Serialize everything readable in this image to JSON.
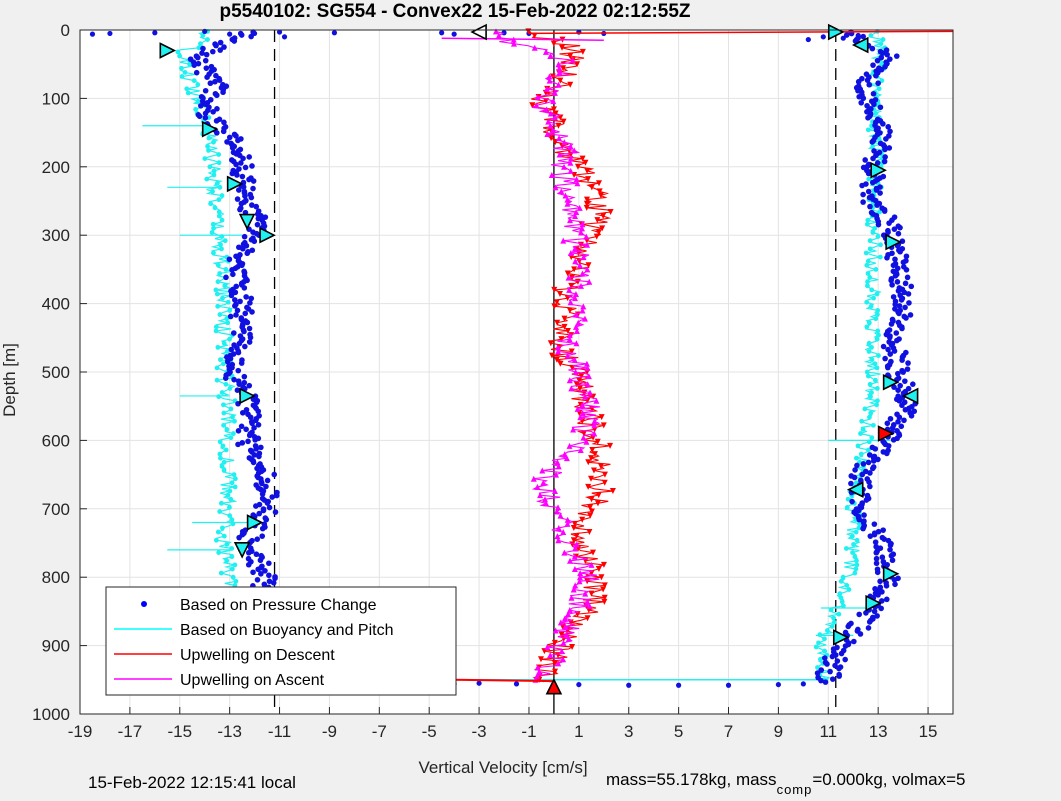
{
  "chart_data": {
    "type": "scatter",
    "title": "p5540102: SG554 - Convex22 15-Feb-2022 02:12:55Z",
    "xlabel": "Vertical Velocity [cm/s]",
    "ylabel": "Depth [m]",
    "xlim": [
      -19,
      16
    ],
    "ylim": [
      1000,
      0
    ],
    "y_reversed": true,
    "grid": true,
    "xticks": [
      -19,
      -17,
      -15,
      -13,
      -11,
      -9,
      -7,
      -5,
      -3,
      -1,
      1,
      3,
      5,
      7,
      9,
      11,
      13,
      15
    ],
    "yticks": [
      0,
      100,
      200,
      300,
      400,
      500,
      600,
      700,
      800,
      900,
      1000
    ],
    "reference_lines": [
      {
        "style": "dashed",
        "x": -11.2
      },
      {
        "style": "dashed",
        "x": 11.3
      },
      {
        "style": "solid",
        "x": 0
      }
    ],
    "legend": {
      "location": "bottom-left",
      "entries": [
        {
          "label": "Based on Pressure Change",
          "color": "#0000ff",
          "marker": "dot"
        },
        {
          "label": "Based on Buoyancy and Pitch",
          "color": "#00ffff",
          "marker": "line"
        },
        {
          "label": "Upwelling on Descent",
          "color": "#ff0000",
          "marker": "line"
        },
        {
          "label": "Upwelling on Ascent",
          "color": "#ff00ff",
          "marker": "line"
        }
      ]
    },
    "series": [
      {
        "color": "#1010e0",
        "depth": [
          10,
          40,
          80,
          120,
          160,
          200,
          250,
          290,
          340,
          400,
          450,
          500,
          550,
          600,
          650,
          700,
          750,
          800,
          850,
          900,
          940,
          955
        ],
        "descent_velocity": [
          -12.5,
          -14.5,
          -13.5,
          -14,
          -12.8,
          -12.5,
          -12.3,
          -11.8,
          -12.9,
          -12.5,
          -12.6,
          -12.9,
          -12.2,
          -12.3,
          -11.6,
          -11.5,
          -12.3,
          -11.5,
          -12.3,
          -12.8,
          -13,
          -13
        ],
        "ascent_velocity": [
          12,
          13.5,
          12.5,
          12.8,
          13.2,
          12.8,
          12.8,
          13.5,
          13.8,
          14,
          13.6,
          13.8,
          14.2,
          13.3,
          12.3,
          12.3,
          13.2,
          13.4,
          12.8,
          11.5,
          11,
          11
        ]
      },
      {
        "color": "#20f0f0",
        "depth": [
          10,
          40,
          80,
          120,
          160,
          200,
          250,
          300,
          350,
          400,
          450,
          500,
          550,
          600,
          650,
          700,
          750,
          800,
          850,
          900,
          940,
          955
        ],
        "descent_velocity": [
          -14,
          -15,
          -14.5,
          -14,
          -13.8,
          -13.6,
          -13.6,
          -13.5,
          -13.3,
          -13.2,
          -13.2,
          -13.2,
          -13.1,
          -13.1,
          -13.1,
          -13.1,
          -13.2,
          -13.1,
          -13,
          -12.9,
          -12.9,
          -13
        ],
        "ascent_velocity": [
          13,
          13,
          12.9,
          12.9,
          12.9,
          12.9,
          12.8,
          12.8,
          12.8,
          12.8,
          12.8,
          12.8,
          12.7,
          12.5,
          12.3,
          12,
          12,
          11.8,
          11.3,
          10.8,
          10.8,
          10.8
        ]
      },
      {
        "color": "#ff0000",
        "depth": [
          5,
          20,
          40,
          60,
          80,
          100,
          120,
          150,
          180,
          200,
          230,
          260,
          300,
          340,
          380,
          420,
          460,
          500,
          540,
          580,
          620,
          660,
          700,
          740,
          780,
          800,
          840,
          880,
          920,
          950
        ],
        "values": [
          -1,
          0.5,
          0.8,
          0.5,
          0.3,
          -0.5,
          -0.3,
          0,
          0.5,
          1,
          1.5,
          1.8,
          1.5,
          1,
          0.5,
          0.5,
          0,
          1,
          1.2,
          1.5,
          1.8,
          2,
          1.5,
          1,
          1.5,
          1.8,
          1.5,
          0.5,
          0,
          -0.5
        ]
      },
      {
        "color": "#ff00ff",
        "depth": [
          15,
          40,
          60,
          80,
          100,
          120,
          150,
          180,
          200,
          230,
          260,
          300,
          340,
          380,
          420,
          460,
          500,
          540,
          560,
          600,
          640,
          660,
          700,
          740,
          780,
          800,
          840,
          880,
          920,
          950
        ],
        "values": [
          -2,
          0.5,
          0.2,
          0,
          -0.5,
          -0.3,
          0,
          0.5,
          0.3,
          0.5,
          0.7,
          0.8,
          1,
          1,
          0.8,
          0.5,
          1,
          1.2,
          1.5,
          1,
          0,
          -0.5,
          0,
          0.5,
          1,
          1.5,
          1,
          0.5,
          0,
          -0.5
        ]
      }
    ],
    "bottom_turnaround": {
      "depth": 955,
      "x_range": [
        -13,
        11
      ]
    },
    "markers": {
      "descent_blue": [
        {
          "x": -15.5,
          "y": 30,
          "dir": "right"
        },
        {
          "x": -13.8,
          "y": 145,
          "dir": "right"
        },
        {
          "x": -12.8,
          "y": 225,
          "dir": "right"
        },
        {
          "x": -12.3,
          "y": 280,
          "dir": "down"
        },
        {
          "x": -11.5,
          "y": 300,
          "dir": "right"
        },
        {
          "x": -12.3,
          "y": 535,
          "dir": "right"
        },
        {
          "x": -12,
          "y": 720,
          "dir": "right"
        },
        {
          "x": -12.5,
          "y": 760,
          "dir": "down"
        }
      ],
      "ascent_blue": [
        {
          "x": 11.3,
          "y": 3,
          "dir": "right"
        },
        {
          "x": 12.3,
          "y": 22,
          "dir": "left"
        },
        {
          "x": 13,
          "y": 205,
          "dir": "right"
        },
        {
          "x": 13.6,
          "y": 310,
          "dir": "right"
        },
        {
          "x": 13.5,
          "y": 515,
          "dir": "right"
        },
        {
          "x": 14.3,
          "y": 535,
          "dir": "left"
        },
        {
          "x": 12.1,
          "y": 672,
          "dir": "left"
        },
        {
          "x": 13.5,
          "y": 795,
          "dir": "right"
        },
        {
          "x": 12.8,
          "y": 838,
          "dir": "right"
        },
        {
          "x": 11.5,
          "y": 888,
          "dir": "right"
        }
      ],
      "top": {
        "x": -3,
        "y": 3,
        "dir": "left"
      },
      "red": [
        {
          "x": 13.3,
          "y": 590,
          "dir": "right"
        },
        {
          "x": 0,
          "y": 960,
          "dir": "up"
        },
        {
          "x": -13,
          "y": 955,
          "dir": "up"
        }
      ]
    }
  },
  "footer": {
    "local_time": "15-Feb-2022 12:15:41 local",
    "mass_text": "mass=55.178kg, mass",
    "comp_sub": "comp",
    "comp_text": "=0.000kg, volmax=5"
  }
}
